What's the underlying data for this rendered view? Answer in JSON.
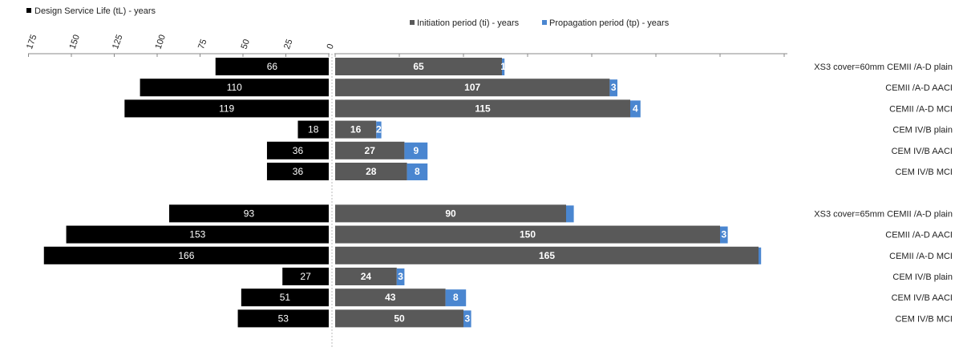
{
  "chart_data": {
    "type": "bar",
    "orientation": "horizontal",
    "layout": "back-to-back",
    "categories": [
      "XS3 cover=60mm CEMII /A-D plain",
      "CEMII /A-D AACI",
      "CEMII /A-D MCI",
      "CEM IV/B plain",
      "CEM IV/B AACI",
      "CEM IV/B MCI",
      "",
      "XS3 cover=65mm CEMII /A-D plain",
      "CEMII /A-D AACI",
      "CEMII /A-D MCI",
      "CEM IV/B plain",
      "CEM IV/B AACI",
      "CEM IV/B MCI"
    ],
    "left_series": {
      "name": "Design Service Life (tL) - years",
      "values": [
        66,
        110,
        119,
        18,
        36,
        36,
        null,
        93,
        153,
        166,
        27,
        51,
        53
      ],
      "labels": [
        "66",
        "110",
        "119",
        "18",
        "36",
        "36",
        "",
        "93",
        "153",
        "166",
        "27",
        "51",
        "53"
      ]
    },
    "right_series": [
      {
        "name": "Initiation period (ti) - years",
        "values": [
          65,
          107,
          115,
          16,
          27,
          28,
          null,
          90,
          150,
          165,
          24,
          43,
          50
        ],
        "labels": [
          "65",
          "107",
          "115",
          "16",
          "27",
          "28",
          "",
          "90",
          "150",
          "165",
          "24",
          "43",
          "50"
        ]
      },
      {
        "name": "Propagation period (tp) - years",
        "values": [
          1,
          3,
          4,
          2,
          9,
          8,
          null,
          3,
          3,
          1,
          3,
          8,
          3
        ],
        "labels": [
          "1",
          "3",
          "4",
          "2",
          "9",
          "8",
          "",
          "",
          "3",
          "",
          "3",
          "8",
          "3"
        ]
      }
    ],
    "left_axis_ticks": [
      "175",
      "150",
      "125",
      "100",
      "75",
      "50",
      "25",
      "0"
    ],
    "left_xlim": [
      0,
      175
    ],
    "right_xlim": [
      0,
      175
    ],
    "grid": false,
    "legend_placement": "top",
    "colors": {
      "left": "#000000",
      "initiation": "#595959",
      "propagation": "#4a86d0"
    }
  }
}
